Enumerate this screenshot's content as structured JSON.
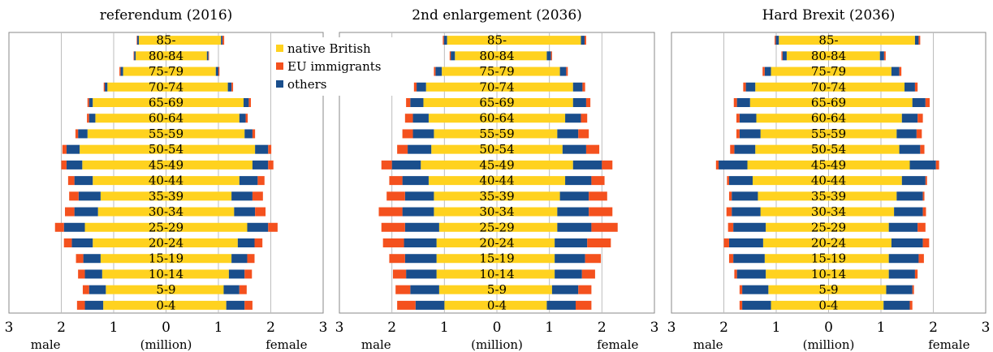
{
  "legend": {
    "items": [
      {
        "label": "native British",
        "color": "#FFD21F"
      },
      {
        "label": "EU immigrants",
        "color": "#F4511E"
      },
      {
        "label": "others",
        "color": "#1A4E8C"
      }
    ]
  },
  "axis_footer": {
    "left": "male",
    "center": "(million)",
    "right": "female"
  },
  "chart_data": [
    {
      "type": "bar",
      "title": "referendum (2016)",
      "xlim": [
        -3,
        3
      ],
      "xticks": [
        "3",
        "2",
        "1",
        "0",
        "1",
        "2",
        "3"
      ],
      "categories": [
        "0-4",
        "5-9",
        "10-14",
        "15-19",
        "20-24",
        "25-29",
        "30-34",
        "35-39",
        "40-44",
        "45-49",
        "50-54",
        "55-59",
        "60-64",
        "65-69",
        "70-74",
        "75-79",
        "80-84",
        "85-"
      ],
      "male": {
        "native British": [
          1.2,
          1.15,
          1.22,
          1.25,
          1.4,
          1.55,
          1.3,
          1.25,
          1.4,
          1.6,
          1.65,
          1.5,
          1.35,
          1.4,
          1.12,
          0.82,
          0.58,
          0.52
        ],
        "others": [
          0.35,
          0.32,
          0.33,
          0.33,
          0.4,
          0.4,
          0.45,
          0.42,
          0.35,
          0.3,
          0.25,
          0.18,
          0.12,
          0.07,
          0.05,
          0.05,
          0.03,
          0.03
        ],
        "EU immigrants": [
          0.15,
          0.12,
          0.13,
          0.14,
          0.15,
          0.17,
          0.18,
          0.18,
          0.12,
          0.1,
          0.08,
          0.05,
          0.04,
          0.03,
          0.02,
          0.02,
          0.01,
          0.01
        ]
      },
      "female": {
        "native British": [
          1.15,
          1.1,
          1.2,
          1.25,
          1.37,
          1.55,
          1.3,
          1.25,
          1.4,
          1.65,
          1.7,
          1.5,
          1.4,
          1.48,
          1.18,
          0.95,
          0.78,
          1.05
        ],
        "others": [
          0.35,
          0.3,
          0.3,
          0.3,
          0.32,
          0.4,
          0.4,
          0.4,
          0.35,
          0.3,
          0.25,
          0.15,
          0.12,
          0.1,
          0.07,
          0.05,
          0.03,
          0.03
        ],
        "EU immigrants": [
          0.15,
          0.14,
          0.14,
          0.14,
          0.15,
          0.18,
          0.2,
          0.2,
          0.13,
          0.1,
          0.06,
          0.05,
          0.04,
          0.04,
          0.03,
          0.02,
          0.01,
          0.03
        ]
      }
    },
    {
      "type": "bar",
      "title": "2nd enlargement (2036)",
      "xlim": [
        -3,
        3
      ],
      "xticks": [
        "3",
        "2",
        "1",
        "0",
        "1",
        "2",
        "3"
      ],
      "categories": [
        "0-4",
        "5-9",
        "10-14",
        "15-19",
        "20-24",
        "25-29",
        "30-34",
        "35-39",
        "40-44",
        "45-49",
        "50-54",
        "55-59",
        "60-64",
        "65-69",
        "70-74",
        "75-79",
        "80-84",
        "85-"
      ],
      "male": {
        "native British": [
          1.0,
          1.1,
          1.15,
          1.15,
          1.15,
          1.1,
          1.2,
          1.2,
          1.3,
          1.45,
          1.25,
          1.2,
          1.3,
          1.4,
          1.35,
          1.05,
          0.8,
          0.95
        ],
        "others": [
          0.55,
          0.55,
          0.58,
          0.6,
          0.62,
          0.65,
          0.6,
          0.55,
          0.5,
          0.55,
          0.45,
          0.4,
          0.3,
          0.25,
          0.18,
          0.12,
          0.08,
          0.06
        ],
        "EU immigrants": [
          0.35,
          0.28,
          0.25,
          0.3,
          0.4,
          0.45,
          0.45,
          0.35,
          0.25,
          0.2,
          0.2,
          0.2,
          0.15,
          0.08,
          0.05,
          0.03,
          0.02,
          0.02
        ]
      },
      "female": {
        "native British": [
          0.95,
          1.05,
          1.1,
          1.1,
          1.1,
          1.15,
          1.15,
          1.2,
          1.3,
          1.45,
          1.25,
          1.15,
          1.3,
          1.45,
          1.45,
          1.2,
          0.95,
          1.6
        ],
        "others": [
          0.55,
          0.5,
          0.52,
          0.58,
          0.62,
          0.65,
          0.6,
          0.55,
          0.5,
          0.55,
          0.45,
          0.4,
          0.3,
          0.25,
          0.18,
          0.12,
          0.08,
          0.07
        ],
        "EU immigrants": [
          0.3,
          0.25,
          0.25,
          0.3,
          0.45,
          0.5,
          0.45,
          0.35,
          0.25,
          0.2,
          0.25,
          0.2,
          0.12,
          0.08,
          0.05,
          0.03,
          0.02,
          0.03
        ]
      }
    },
    {
      "type": "bar",
      "title": "Hard Brexit (2036)",
      "xlim": [
        -3,
        3
      ],
      "xticks": [
        "3",
        "2",
        "1",
        "0",
        "1",
        "2",
        "3"
      ],
      "categories": [
        "0-4",
        "5-9",
        "10-14",
        "15-19",
        "20-24",
        "25-29",
        "30-34",
        "35-39",
        "40-44",
        "45-49",
        "50-54",
        "55-59",
        "60-64",
        "65-69",
        "70-74",
        "75-79",
        "80-84",
        "85-"
      ],
      "male": {
        "native British": [
          1.1,
          1.15,
          1.2,
          1.22,
          1.25,
          1.2,
          1.3,
          1.35,
          1.45,
          1.55,
          1.4,
          1.3,
          1.38,
          1.5,
          1.4,
          1.1,
          0.8,
          0.95
        ],
        "others": [
          0.55,
          0.5,
          0.55,
          0.6,
          0.65,
          0.62,
          0.55,
          0.5,
          0.45,
          0.55,
          0.4,
          0.4,
          0.32,
          0.25,
          0.18,
          0.12,
          0.08,
          0.06
        ],
        "EU immigrants": [
          0.05,
          0.05,
          0.05,
          0.08,
          0.1,
          0.1,
          0.1,
          0.05,
          0.04,
          0.05,
          0.08,
          0.06,
          0.06,
          0.06,
          0.05,
          0.04,
          0.02,
          0.02
        ]
      },
      "female": {
        "native British": [
          1.05,
          1.1,
          1.15,
          1.15,
          1.2,
          1.15,
          1.25,
          1.3,
          1.4,
          1.55,
          1.35,
          1.3,
          1.4,
          1.6,
          1.45,
          1.2,
          0.98,
          1.65
        ],
        "others": [
          0.5,
          0.5,
          0.5,
          0.57,
          0.6,
          0.55,
          0.55,
          0.5,
          0.45,
          0.5,
          0.4,
          0.38,
          0.3,
          0.25,
          0.2,
          0.15,
          0.08,
          0.07
        ],
        "EU immigrants": [
          0.05,
          0.03,
          0.05,
          0.1,
          0.12,
          0.15,
          0.06,
          0.03,
          0.03,
          0.06,
          0.08,
          0.1,
          0.1,
          0.08,
          0.05,
          0.04,
          0.03,
          0.03
        ]
      }
    }
  ]
}
